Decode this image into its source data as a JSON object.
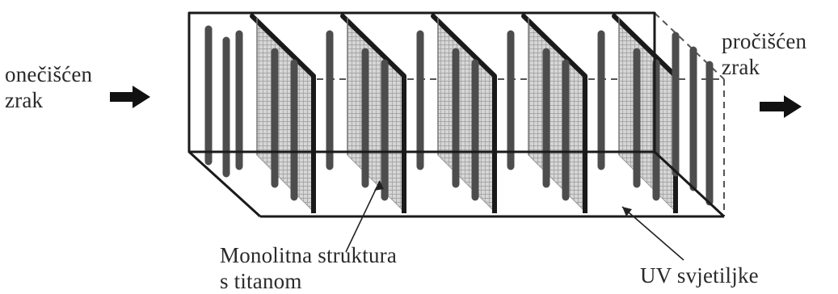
{
  "labels": {
    "inlet": [
      "onečišćen",
      "zrak"
    ],
    "outlet": [
      "pročišćen",
      "zrak"
    ],
    "monolith": [
      "Monolitna struktura",
      "s titanom"
    ],
    "uv_lamps": "UV svjetiljke"
  },
  "diagram": {
    "panel_count": 5,
    "colors": {
      "frame": "#1a1a1a",
      "lamp": "#4d4d4d",
      "panel_fill": "#d0d0d0",
      "mesh": "#9a9a9a",
      "text": "#2a2a2a"
    }
  }
}
